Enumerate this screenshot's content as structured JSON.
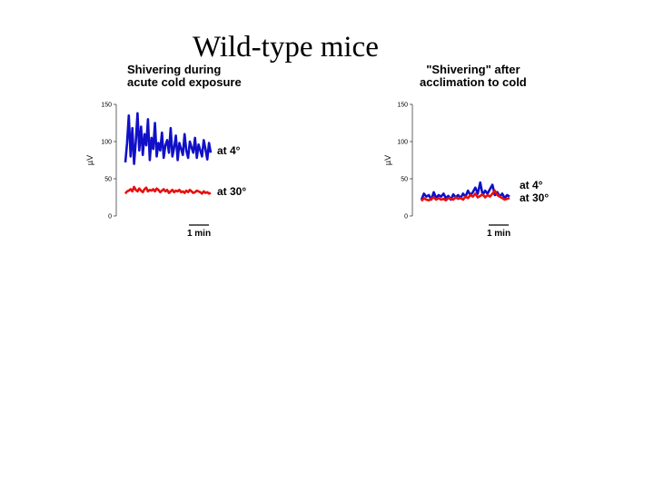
{
  "page": {
    "title": "Wild-type mice"
  },
  "chart_data": [
    {
      "type": "line",
      "title_lines": [
        "Shivering during",
        "acute cold exposure"
      ],
      "ylabel": "µV",
      "ylim": [
        0,
        150
      ],
      "yticks": [
        0,
        50,
        100,
        150
      ],
      "scale_bar": "1 min",
      "series": [
        {
          "name": "at 4°",
          "color": "#1010c8",
          "values": [
            72,
            98,
            135,
            80,
            118,
            70,
            100,
            138,
            88,
            120,
            82,
            110,
            95,
            130,
            75,
            105,
            90,
            125,
            80,
            98,
            88,
            112,
            78,
            95,
            102,
            85,
            118,
            80,
            92,
            108,
            75,
            98,
            90,
            82,
            110,
            88,
            78,
            100,
            92,
            85,
            105,
            78,
            96,
            88,
            80,
            102,
            90,
            76,
            98,
            85
          ]
        },
        {
          "name": "at 30°",
          "color": "#e81010",
          "values": [
            30,
            33,
            34,
            36,
            33,
            39,
            35,
            33,
            37,
            34,
            32,
            36,
            38,
            33,
            35,
            34,
            36,
            33,
            37,
            35,
            32,
            34,
            36,
            33,
            35,
            31,
            33,
            35,
            32,
            34,
            33,
            35,
            32,
            33,
            31,
            34,
            32,
            35,
            33,
            31,
            32,
            34,
            33,
            32,
            30,
            33,
            31,
            32,
            30,
            31
          ]
        }
      ]
    },
    {
      "type": "line",
      "title_lines": [
        "\"Shivering\" after",
        "acclimation to cold"
      ],
      "ylabel": "µV",
      "ylim": [
        0,
        150
      ],
      "yticks": [
        0,
        50,
        100,
        150
      ],
      "scale_bar": "1 min",
      "series": [
        {
          "name": "at 4°",
          "color": "#1010c8",
          "values": [
            22,
            30,
            26,
            28,
            22,
            32,
            24,
            28,
            26,
            30,
            24,
            27,
            22,
            29,
            25,
            28,
            24,
            30,
            26,
            34,
            28,
            32,
            38,
            30,
            45,
            28,
            34,
            30,
            36,
            42,
            28,
            32,
            26,
            30,
            24,
            28,
            26
          ]
        },
        {
          "name": "at 30°",
          "color": "#e81010",
          "values": [
            20,
            24,
            22,
            21,
            23,
            25,
            22,
            24,
            22,
            23,
            21,
            24,
            23,
            22,
            25,
            23,
            24,
            22,
            26,
            24,
            28,
            26,
            30,
            25,
            27,
            29,
            25,
            28,
            26,
            30,
            34,
            28,
            26,
            24,
            22,
            23,
            24
          ]
        }
      ]
    }
  ]
}
